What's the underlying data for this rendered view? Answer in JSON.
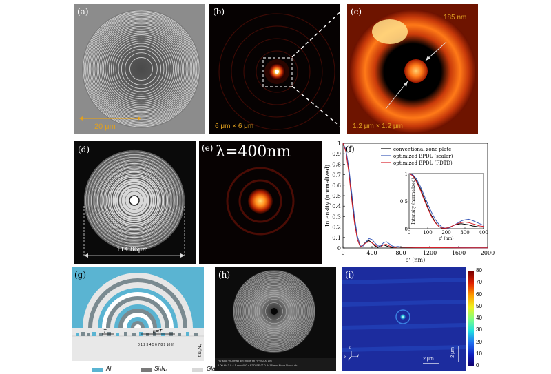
{
  "panels": {
    "a": {
      "label": "(a)",
      "scale": "20 μm"
    },
    "b": {
      "label": "(b)",
      "scale": "6 μm × 6 μm"
    },
    "c": {
      "label": "(c)",
      "size": "185 nm",
      "scale": "1.2 μm × 1.2 μm"
    },
    "d": {
      "label": "(d)",
      "diameter": "114.86μm"
    },
    "e": {
      "label": "(e)",
      "wavelength": "λ=400nm"
    },
    "g": {
      "label": "(g)",
      "period": "T",
      "radius": "rᵢ=iT",
      "index": "0 1 2 3 4 5 6 7 8 9 10 (i)",
      "legend": [
        "Al",
        "Si₃N₄",
        "Glass"
      ]
    },
    "h": {
      "label": "(h)",
      "info_line1": "HV spot WD mag det mode tilt HFW 200 μm",
      "info_line2": "5.00 kV 3.0 4.1 mm 400 × ETD SE 0° 0.8418 mm Nova NanoLab"
    },
    "i": {
      "label": "(i)",
      "colorbar_ticks": [
        "80",
        "70",
        "60",
        "50",
        "40",
        "30",
        "20",
        "10",
        "0"
      ],
      "scale_v": "2 μm",
      "scale_h": "2 μm",
      "axis_x": "x",
      "axis_y": "y",
      "axis_z": "z"
    }
  },
  "chart_data": {
    "type": "line",
    "label": "(f)",
    "xlabel": "ρ' (nm)",
    "ylabel": "Intensity (normalized)",
    "xlim": [
      0,
      2000
    ],
    "ylim": [
      0,
      1.0
    ],
    "xticks": [
      "0",
      "400",
      "800",
      "1200",
      "1600",
      "2000"
    ],
    "yticks": [
      "0",
      "0.1",
      "0.2",
      "0.3",
      "0.4",
      "0.5",
      "0.6",
      "0.7",
      "0.8",
      "0.9",
      "1"
    ],
    "legend_position": "top-right",
    "series": [
      {
        "name": "conventional zone plate",
        "color": "#000000",
        "x": [
          0,
          40,
          80,
          120,
          160,
          200,
          240,
          280,
          320,
          360,
          400,
          440,
          480,
          520,
          560,
          600,
          640,
          680,
          720,
          760,
          800,
          900,
          1000,
          1200,
          1400,
          1600,
          1800,
          2000
        ],
        "y": [
          1.0,
          0.93,
          0.74,
          0.49,
          0.25,
          0.08,
          0.01,
          0.03,
          0.06,
          0.07,
          0.05,
          0.02,
          0.005,
          0.02,
          0.03,
          0.02,
          0.01,
          0.004,
          0.01,
          0.012,
          0.008,
          0.006,
          0.004,
          0.003,
          0.003,
          0.002,
          0.002,
          0.002
        ]
      },
      {
        "name": "optimized BPDL (scalar)",
        "color": "#3a5ab8",
        "x": [
          0,
          40,
          80,
          120,
          160,
          200,
          240,
          280,
          320,
          360,
          400,
          440,
          480,
          520,
          560,
          600,
          640,
          680,
          720,
          760,
          800,
          900,
          1000,
          1200,
          1400,
          1600,
          1800,
          2000
        ],
        "y": [
          1.0,
          0.94,
          0.77,
          0.53,
          0.29,
          0.11,
          0.02,
          0.02,
          0.06,
          0.09,
          0.08,
          0.05,
          0.02,
          0.02,
          0.05,
          0.06,
          0.04,
          0.02,
          0.01,
          0.015,
          0.01,
          0.008,
          0.005,
          0.004,
          0.003,
          0.003,
          0.002,
          0.002
        ]
      },
      {
        "name": "optimized BPDL (FDTD)",
        "color": "#d8202a",
        "x": [
          0,
          40,
          80,
          120,
          160,
          200,
          240,
          280,
          320,
          360,
          400,
          440,
          480,
          520,
          560,
          600,
          640,
          680,
          720,
          760,
          800,
          900,
          1000,
          1200,
          1400,
          1600,
          1800,
          2000
        ],
        "y": [
          1.0,
          0.92,
          0.72,
          0.46,
          0.23,
          0.08,
          0.01,
          0.03,
          0.05,
          0.06,
          0.05,
          0.03,
          0.01,
          0.01,
          0.03,
          0.035,
          0.02,
          0.01,
          0.005,
          0.01,
          0.008,
          0.006,
          0.004,
          0.003,
          0.003,
          0.002,
          0.002,
          0.002
        ]
      }
    ],
    "inset": {
      "xlabel": "ρ' (nm)",
      "ylabel": "Intensity (normalized)",
      "xlim": [
        0,
        400
      ],
      "ylim": [
        0,
        1
      ],
      "xticks": [
        "0",
        "100",
        "200",
        "300",
        "400"
      ],
      "yticks": [
        "0",
        "0.5",
        "1"
      ],
      "series": [
        {
          "name": "conventional zone plate",
          "color": "#000000",
          "x": [
            0,
            20,
            40,
            60,
            80,
            100,
            120,
            140,
            160,
            180,
            200,
            220,
            240,
            260,
            280,
            300,
            320,
            340,
            360,
            380,
            400
          ],
          "y": [
            1.0,
            0.97,
            0.87,
            0.73,
            0.56,
            0.39,
            0.24,
            0.12,
            0.04,
            0.005,
            0.01,
            0.03,
            0.06,
            0.08,
            0.09,
            0.08,
            0.07,
            0.05,
            0.04,
            0.03,
            0.03
          ]
        },
        {
          "name": "optimized BPDL (scalar)",
          "color": "#3a5ab8",
          "x": [
            0,
            20,
            40,
            60,
            80,
            100,
            120,
            140,
            160,
            180,
            200,
            220,
            240,
            260,
            280,
            300,
            320,
            340,
            360,
            380,
            400
          ],
          "y": [
            1.0,
            0.98,
            0.9,
            0.77,
            0.61,
            0.45,
            0.3,
            0.17,
            0.08,
            0.02,
            0.005,
            0.02,
            0.06,
            0.1,
            0.14,
            0.16,
            0.17,
            0.15,
            0.12,
            0.09,
            0.06
          ]
        },
        {
          "name": "optimized BPDL (FDTD)",
          "color": "#d8202a",
          "x": [
            0,
            20,
            40,
            60,
            80,
            100,
            120,
            140,
            160,
            180,
            200,
            220,
            240,
            260,
            280,
            300,
            320,
            340,
            360,
            380,
            400
          ],
          "y": [
            1.0,
            0.96,
            0.85,
            0.7,
            0.53,
            0.37,
            0.22,
            0.11,
            0.04,
            0.01,
            0.01,
            0.03,
            0.06,
            0.09,
            0.11,
            0.12,
            0.11,
            0.09,
            0.07,
            0.05,
            0.04
          ]
        }
      ]
    }
  }
}
